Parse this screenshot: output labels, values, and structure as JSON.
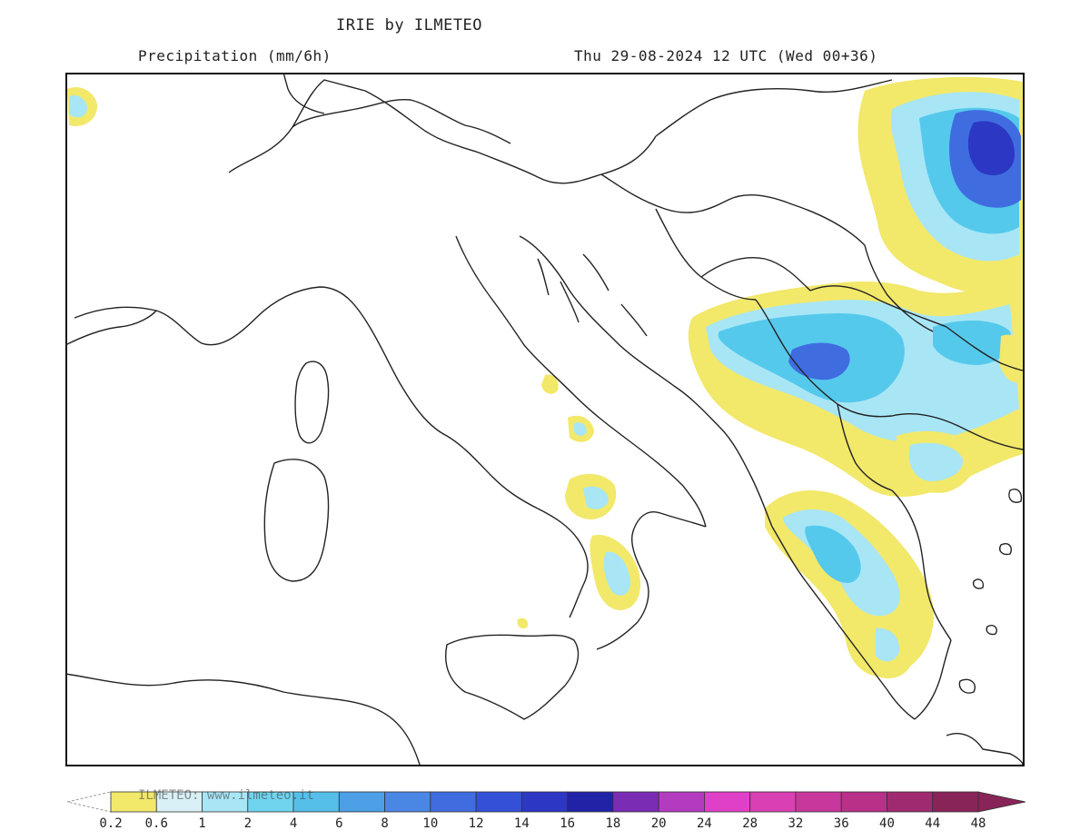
{
  "header": {
    "title": "IRIE by ILMETEO",
    "subtitle": "Precipitation (mm/6h)",
    "valid_time": "Thu 29-08-2024 12 UTC (Wed 00+36)"
  },
  "legend": {
    "watermark": "ILMETEO: www.ilmeteo.it",
    "ticks": [
      "0.2",
      "0.6",
      "1",
      "2",
      "4",
      "6",
      "8",
      "10",
      "12",
      "14",
      "16",
      "18",
      "20",
      "24",
      "28",
      "32",
      "36",
      "40",
      "44",
      "48"
    ],
    "colors": [
      "#f2e86a",
      "#d8f0f6",
      "#a8e6f6",
      "#70d4ef",
      "#55bfea",
      "#4d9fe6",
      "#4a86e4",
      "#3f6de0",
      "#3450d6",
      "#2c38c4",
      "#2222a6",
      "#7a2cb4",
      "#b33bc0",
      "#e040c8",
      "#d840b4",
      "#c8389c",
      "#b83088",
      "#a02a70",
      "#882458"
    ],
    "below_min_color": "#ffffff"
  },
  "map": {
    "palette": {
      "coast": "#222222",
      "light": "#f2e86a",
      "pale": "#a8e6f6",
      "cyan": "#55c9ec",
      "blue": "#3f6de0",
      "deep": "#2c38c4"
    }
  }
}
